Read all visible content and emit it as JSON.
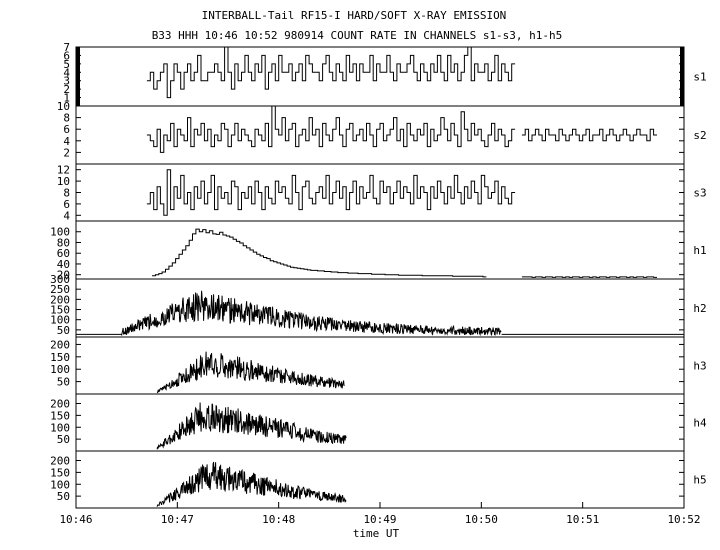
{
  "title_line1": "INTERBALL-Tail RF15-I HARD/SOFT X-RAY EMISSION",
  "title_line2": "B33 HHH 10:46 10:52 980914  COUNT RATE IN CHANNELS s1-s3, h1-h5",
  "xlabel": "time UT",
  "chart_data": {
    "type": "line",
    "title": "INTERBALL-Tail RF15-I HARD/SOFT X-RAY EMISSION",
    "subtitle": "B33 HHH 10:46 10:52 980914  COUNT RATE IN CHANNELS s1-s3, h1-h5",
    "xlabel": "time UT",
    "x_ticks": [
      "10:46",
      "10:47",
      "10:48",
      "10:49",
      "10:50",
      "10:51",
      "10:52"
    ],
    "xlim": [
      "10:46",
      "10:52"
    ],
    "grid": false,
    "panels": [
      {
        "name": "s1",
        "ylim": [
          0,
          7
        ],
        "yticks": [
          1,
          2,
          3,
          4,
          5,
          6,
          7
        ],
        "segments": [
          {
            "start": "10:46:42",
            "step_s": 2,
            "values": [
              3,
              4,
              2,
              3,
              4,
              5,
              1,
              3,
              5,
              4,
              2,
              4,
              5,
              3,
              4,
              6,
              3,
              3,
              4,
              4,
              5,
              4,
              3,
              7,
              4,
              2,
              5,
              3,
              4,
              6,
              4,
              3,
              5,
              4,
              6,
              2,
              4,
              5,
              3,
              6,
              4,
              4,
              5,
              3,
              4,
              5,
              3,
              6,
              5,
              4,
              4,
              3,
              5,
              6,
              4,
              3,
              5,
              4,
              3,
              6,
              4,
              5,
              3,
              5,
              4,
              4,
              6,
              3,
              5,
              4,
              4,
              6,
              4,
              3,
              5,
              4,
              4,
              5,
              6,
              4,
              3,
              5,
              4,
              3,
              5,
              4,
              6,
              4,
              3,
              6,
              4,
              5,
              3,
              4,
              6,
              7,
              3,
              5,
              4,
              4,
              5,
              3,
              4,
              6,
              3,
              5,
              4,
              3,
              5
            ]
          }
        ]
      },
      {
        "name": "s2",
        "ylim": [
          0,
          10
        ],
        "yticks": [
          2,
          4,
          6,
          8,
          10
        ],
        "segments": [
          {
            "start": "10:46:42",
            "step_s": 2,
            "values": [
              5,
              4,
              3,
              6,
              2,
              5,
              4,
              7,
              3,
              6,
              5,
              4,
              8,
              3,
              6,
              5,
              7,
              4,
              6,
              3,
              5,
              4,
              7,
              6,
              3,
              5,
              7,
              4,
              6,
              5,
              4,
              3,
              6,
              5,
              4,
              7,
              3,
              10,
              6,
              5,
              8,
              4,
              6,
              7,
              3,
              5,
              6,
              4,
              8,
              5,
              6,
              3,
              7,
              5,
              4,
              6,
              8,
              5,
              3,
              6,
              7,
              4,
              5,
              6,
              4,
              7,
              5,
              3,
              6,
              7,
              4,
              5,
              6,
              8,
              4,
              6,
              3,
              7,
              5,
              4,
              6,
              5,
              7,
              3,
              6,
              4,
              5,
              8,
              6,
              4,
              7,
              5,
              3,
              9,
              6,
              4,
              7,
              5,
              6,
              4,
              3,
              5,
              7,
              4,
              6,
              5,
              3,
              4,
              6
            ]
          },
          {
            "start": "10:50:24",
            "step_s": 2,
            "values": [
              5,
              6,
              4,
              5,
              6,
              5,
              4,
              6,
              5,
              5,
              4,
              6,
              5,
              4,
              5,
              6,
              5,
              4,
              5,
              6,
              4,
              5,
              5,
              6,
              4,
              5,
              6,
              5,
              4,
              5,
              6,
              5,
              4,
              5,
              6,
              5,
              5,
              4,
              6,
              5
            ]
          }
        ]
      },
      {
        "name": "s3",
        "ylim": [
          3,
          13
        ],
        "yticks": [
          4,
          6,
          8,
          10,
          12
        ],
        "segments": [
          {
            "start": "10:46:42",
            "step_s": 2,
            "values": [
              6,
              8,
              5,
              9,
              6,
              4,
              12,
              5,
              9,
              7,
              11,
              6,
              8,
              5,
              9,
              7,
              10,
              6,
              8,
              11,
              5,
              9,
              7,
              8,
              6,
              10,
              9,
              5,
              8,
              7,
              9,
              6,
              10,
              8,
              5,
              9,
              7,
              6,
              10,
              8,
              9,
              7,
              6,
              11,
              8,
              5,
              9,
              10,
              7,
              6,
              8,
              9,
              7,
              11,
              6,
              8,
              10,
              7,
              9,
              5,
              8,
              10,
              6,
              9,
              7,
              8,
              11,
              7,
              6,
              10,
              8,
              9,
              6,
              8,
              10,
              7,
              9,
              8,
              6,
              11,
              7,
              9,
              8,
              5,
              9,
              7,
              10,
              8,
              6,
              9,
              7,
              11,
              8,
              6,
              9,
              7,
              10,
              8,
              6,
              11,
              9,
              7,
              8,
              10,
              6,
              9,
              7,
              6,
              8
            ]
          }
        ]
      },
      {
        "name": "h1",
        "ylim": [
          12,
          120
        ],
        "yticks": [
          20,
          40,
          60,
          80,
          100
        ],
        "segments": [
          {
            "start": "10:46:45",
            "step_s": 2,
            "values": [
              18,
              20,
              22,
              25,
              30,
              36,
              42,
              50,
              58,
              66,
              74,
              84,
              96,
              105,
              100,
              104,
              98,
              102,
              96,
              95,
              99,
              94,
              92,
              90,
              86,
              82,
              79,
              74,
              70,
              66,
              62,
              58,
              55,
              52,
              50,
              46,
              44,
              42,
              40,
              38,
              36,
              34,
              33,
              32,
              31,
              30,
              29,
              28,
              28,
              27,
              27,
              26,
              26,
              25,
              25,
              24,
              24,
              24,
              23,
              23,
              23,
              22,
              22,
              22,
              22,
              21,
              21,
              21,
              21,
              20,
              20,
              20,
              20,
              19,
              19,
              19,
              19,
              19,
              19,
              19,
              18,
              18,
              18,
              18,
              18,
              18,
              18,
              18,
              18,
              17,
              17,
              17,
              17,
              17,
              17,
              17,
              17,
              17,
              16
            ]
          },
          {
            "start": "10:50:24",
            "step_s": 2,
            "values": [
              16,
              16,
              16,
              15,
              16,
              16,
              15,
              16,
              16,
              15,
              16,
              16,
              15,
              16,
              15,
              16,
              16,
              15,
              16,
              16,
              15,
              16,
              15,
              16,
              16,
              15,
              16,
              16,
              15,
              16,
              16,
              15,
              16,
              15,
              16,
              16,
              15,
              16,
              16,
              15
            ]
          }
        ]
      },
      {
        "name": "h2",
        "ylim": [
          15,
          300
        ],
        "yticks": [
          50,
          100,
          150,
          200,
          250,
          300
        ],
        "baseline": 28,
        "envelope": {
          "start": "10:46:27",
          "end": "10:50:12",
          "rise_end": "10:47:12",
          "peak": 170,
          "floor": 40,
          "decay": "10:48:00"
        }
      },
      {
        "name": "h3",
        "ylim": [
          0,
          230
        ],
        "yticks": [
          50,
          100,
          150,
          200
        ],
        "envelope": {
          "start": "10:46:48",
          "end": "10:48:39",
          "rise_end": "10:47:18",
          "peak": 125,
          "floor": 8,
          "decay": "10:48:05"
        }
      },
      {
        "name": "h4",
        "ylim": [
          0,
          240
        ],
        "yticks": [
          50,
          100,
          150,
          200
        ],
        "envelope": {
          "start": "10:46:48",
          "end": "10:48:40",
          "rise_end": "10:47:15",
          "peak": 150,
          "floor": 12,
          "decay": "10:48:05"
        }
      },
      {
        "name": "h5",
        "ylim": [
          0,
          240
        ],
        "yticks": [
          50,
          100,
          150,
          200
        ],
        "envelope": {
          "start": "10:46:48",
          "end": "10:48:40",
          "rise_end": "10:47:18",
          "peak": 140,
          "floor": 10,
          "decay": "10:48:00"
        }
      }
    ]
  }
}
